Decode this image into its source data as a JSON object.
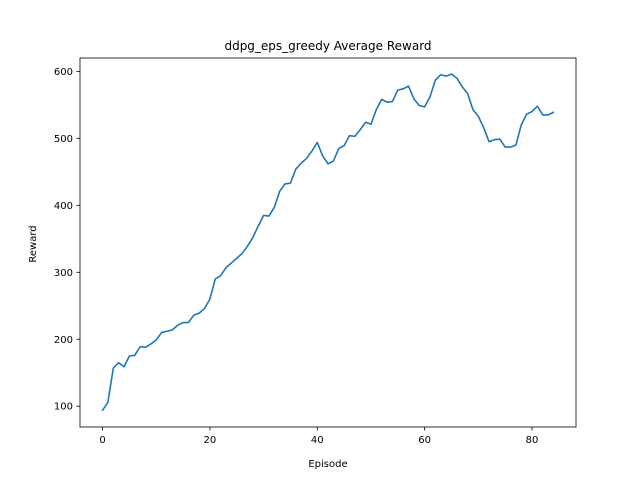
{
  "chart_data": {
    "type": "line",
    "title": "ddpg_eps_greedy Average Reward",
    "xlabel": "Episode",
    "ylabel": "Reward",
    "xlim": [
      -4.2,
      88.2
    ],
    "ylim": [
      69,
      620
    ],
    "xticks": [
      0,
      20,
      40,
      60,
      80
    ],
    "yticks": [
      100,
      200,
      300,
      400,
      500,
      600
    ],
    "grid": false,
    "series": [
      {
        "color": "#1f77b4",
        "x": [
          0,
          1,
          2,
          3,
          4,
          5,
          6,
          7,
          8,
          9,
          10,
          11,
          12,
          13,
          14,
          15,
          16,
          17,
          18,
          19,
          20,
          21,
          22,
          23,
          24,
          25,
          26,
          27,
          28,
          29,
          30,
          31,
          32,
          33,
          34,
          35,
          36,
          37,
          38,
          39,
          40,
          41,
          42,
          43,
          44,
          45,
          46,
          47,
          48,
          49,
          50,
          51,
          52,
          53,
          54,
          55,
          56,
          57,
          58,
          59,
          60,
          61,
          62,
          63,
          64,
          65,
          66,
          67,
          68,
          69,
          70,
          71,
          72,
          73,
          74,
          75,
          76,
          77,
          78,
          79,
          80,
          81,
          82,
          83,
          84
        ],
        "values": [
          94,
          106,
          157,
          165,
          159,
          175,
          176,
          189,
          188,
          193,
          199,
          210,
          212,
          214,
          221,
          225,
          225,
          236,
          239,
          246,
          260,
          290,
          295,
          307,
          314,
          321,
          328,
          339,
          352,
          369,
          385,
          384,
          397,
          421,
          432,
          433,
          454,
          463,
          470,
          481,
          494,
          474,
          462,
          466,
          485,
          489,
          504,
          503,
          513,
          524,
          521,
          543,
          558,
          554,
          555,
          572,
          574,
          578,
          559,
          549,
          547,
          562,
          587,
          595,
          593,
          596,
          590,
          577,
          567,
          543,
          533,
          516,
          495,
          498,
          499,
          487,
          487,
          490,
          520,
          536,
          540,
          548,
          535,
          535,
          539
        ]
      }
    ]
  }
}
